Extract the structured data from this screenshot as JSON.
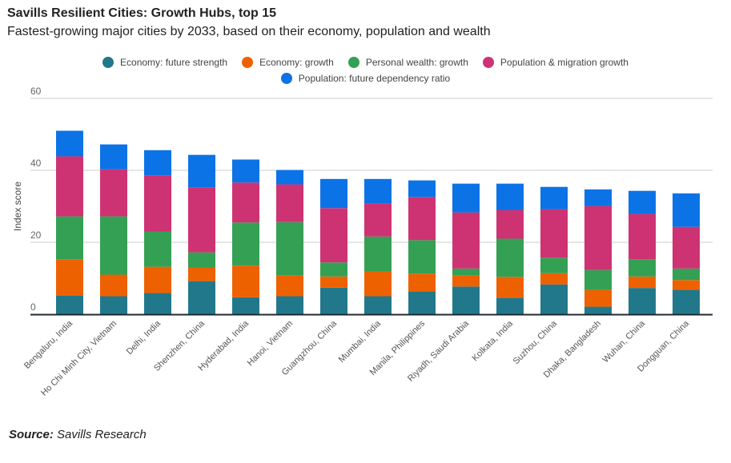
{
  "chart_data": {
    "type": "bar",
    "stacked": true,
    "title": "Savills Resilient Cities: Growth Hubs, top 15",
    "subtitle": "Fastest-growing major cities by 2033, based on their economy, population and wealth",
    "xlabel": "",
    "ylabel": "Index score",
    "ylim": [
      0,
      60
    ],
    "yticks": [
      0,
      20,
      40,
      60
    ],
    "grid": true,
    "legend_position": "top",
    "categories": [
      "Bengaluru, India",
      "Ho Chi Minh City, Vietnam",
      "Delhi, India",
      "Shenzhen, China",
      "Hyderabad, India",
      "Hanoi, Vietnam",
      "Guangzhou, China",
      "Mumbai, India",
      "Manila, Philippines",
      "Riyadh, Saudi Arabia",
      "Kolkata, India",
      "Suzhou, China",
      "Dhaka, Bangladesh",
      "Wuhan, China",
      "Dongguan, China"
    ],
    "series": [
      {
        "name": "Economy: future strength",
        "color": "#21788a",
        "values": [
          5.2,
          5.0,
          5.9,
          9.2,
          4.7,
          5.0,
          7.4,
          5.0,
          6.4,
          7.7,
          4.6,
          8.3,
          2.1,
          7.3,
          6.8
        ]
      },
      {
        "name": "Economy: growth",
        "color": "#ee6101",
        "values": [
          10.1,
          6.0,
          7.3,
          3.8,
          8.8,
          5.8,
          3.1,
          6.9,
          4.9,
          3.1,
          5.8,
          3.1,
          4.7,
          3.2,
          2.7
        ]
      },
      {
        "name": "Personal wealth: growth",
        "color": "#34a054",
        "values": [
          11.9,
          16.2,
          9.8,
          4.2,
          12.0,
          14.8,
          3.9,
          9.7,
          9.3,
          1.9,
          10.6,
          4.3,
          5.5,
          4.8,
          3.2
        ]
      },
      {
        "name": "Population & migration growth",
        "color": "#cd3373",
        "values": [
          16.7,
          13.1,
          15.5,
          18.1,
          11.1,
          10.5,
          15.1,
          9.2,
          12.0,
          15.6,
          8.0,
          13.5,
          17.8,
          12.6,
          11.6
        ]
      },
      {
        "name": "Population: future dependency ratio",
        "color": "#0b73e6",
        "values": [
          7.1,
          6.9,
          7.1,
          9.0,
          6.4,
          4.0,
          8.1,
          6.8,
          4.6,
          8.0,
          7.3,
          6.2,
          4.6,
          6.4,
          9.3
        ]
      }
    ]
  },
  "source": {
    "label": "Source:",
    "text": "Savills Research"
  }
}
